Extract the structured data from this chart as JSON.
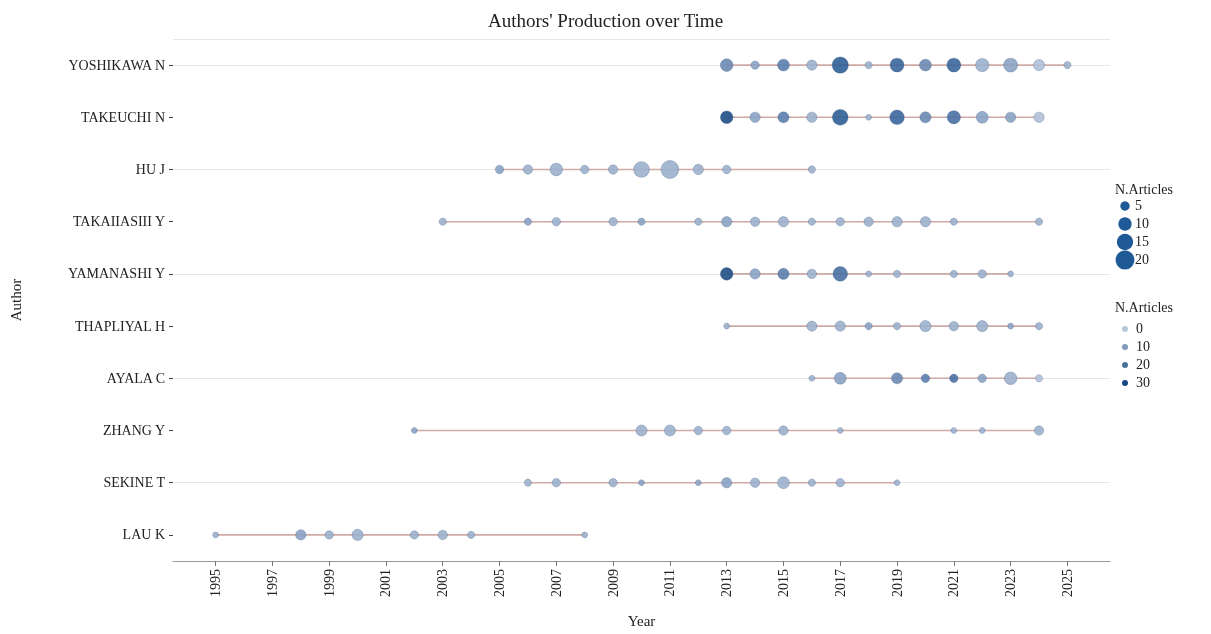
{
  "chart_data": {
    "type": "bubble",
    "orientation": "horizontal",
    "title": "Authors' Production over Time",
    "xlabel": "Year",
    "ylabel": "Author",
    "legend_title": "N.Articles",
    "clabel": "N.Articles",
    "grid": "y",
    "xlim": [
      1993.5,
      2026.5
    ],
    "xticks": [
      1995,
      1997,
      1999,
      2001,
      2003,
      2005,
      2007,
      2009,
      2011,
      2013,
      2015,
      2017,
      2019,
      2021,
      2023,
      2025
    ],
    "categories": [
      "YOSHIKAWA N",
      "TAKEUCHI N",
      "HU J",
      "TAKAIIASIII Y",
      "YAMANASHI Y",
      "THAPLIYAL H",
      "AYALA C",
      "ZHANG Y",
      "SEKINE T",
      "LAU K"
    ],
    "size_legend": [
      5,
      10,
      15,
      20
    ],
    "annotations": [
      "0",
      "10",
      "20",
      "30"
    ],
    "series": [
      {
        "values": [
          2013,
          2013,
          2005,
          2003,
          2013,
          2013,
          2016,
          2002,
          2006,
          1995
        ],
        "sizes": [
          9,
          9,
          4,
          3,
          9,
          2,
          2,
          2,
          3,
          2
        ],
        "colors": [
          "#6b8ab3",
          "#1f4e85",
          "#8aa3c4",
          "#9cb1cd",
          "#1f4e85",
          "#9cb1cd",
          "#9cb1cd",
          "#8aa3c4",
          "#9cb1cd",
          "#9cb1cd"
        ]
      },
      {
        "values": [
          2014,
          2014,
          2006,
          2006,
          2014,
          2016,
          2017,
          2010,
          2007,
          1998
        ],
        "sizes": [
          4,
          6,
          5,
          3,
          6,
          6,
          8,
          7,
          4,
          6
        ],
        "colors": [
          "#8aa3c4",
          "#8aa3c4",
          "#9cb1cd",
          "#8aa3c4",
          "#8aa3c4",
          "#9cb1cd",
          "#8aa3c4",
          "#9cb1cd",
          "#9cb1cd",
          "#8aa3c4"
        ]
      },
      {
        "values": [
          2015,
          2015,
          2007,
          2007,
          2015,
          2017,
          2019,
          2011,
          2009,
          1999
        ],
        "sizes": [
          8,
          7,
          9,
          4,
          7,
          6,
          7,
          7,
          4,
          4
        ],
        "colors": [
          "#5a7fae",
          "#5a7fae",
          "#9cb1cd",
          "#9cb1cd",
          "#5a7fae",
          "#9cb1cd",
          "#6b8ab3",
          "#9cb1cd",
          "#9cb1cd",
          "#9cb1cd"
        ]
      },
      {
        "values": [
          2016,
          2016,
          2008,
          2009,
          2016,
          2018,
          2020,
          2012,
          2010,
          2000
        ],
        "sizes": [
          6,
          6,
          4,
          4,
          5,
          3,
          4,
          4,
          2,
          7
        ],
        "colors": [
          "#9cb1cd",
          "#9cb1cd",
          "#9cb1cd",
          "#9cb1cd",
          "#9cb1cd",
          "#8aa3c4",
          "#5a7fae",
          "#9cb1cd",
          "#8aa3c4",
          "#9cb1cd"
        ]
      },
      {
        "values": [
          2017,
          2017,
          2009,
          2010,
          2017,
          2019,
          2021,
          2013,
          2012,
          2002
        ],
        "sizes": [
          15,
          14,
          5,
          3,
          12,
          3,
          4,
          4,
          2,
          4
        ],
        "colors": [
          "#2f5f97",
          "#2f5f97",
          "#9cb1cd",
          "#8aa3c4",
          "#4a70a3",
          "#9cb1cd",
          "#4a70a3",
          "#9cb1cd",
          "#8aa3c4",
          "#9cb1cd"
        ]
      },
      {
        "values": [
          2018,
          2018,
          2010,
          2012,
          2018,
          2020,
          2022,
          2015,
          2013,
          2003
        ],
        "sizes": [
          3,
          2,
          14,
          3,
          2,
          7,
          4,
          5,
          6,
          5
        ],
        "colors": [
          "#9cb1cd",
          "#9cb1cd",
          "#9cb1cd",
          "#9cb1cd",
          "#9cb1cd",
          "#9cb1cd",
          "#8aa3c4",
          "#9cb1cd",
          "#8aa3c4",
          "#9cb1cd"
        ]
      },
      {
        "values": [
          2019,
          2019,
          2011,
          2013,
          2019,
          2021,
          2023,
          2017,
          2014,
          2004
        ],
        "sizes": [
          11,
          12,
          18,
          6,
          3,
          5,
          9,
          2,
          5,
          3
        ],
        "colors": [
          "#3a669c",
          "#3a669c",
          "#9cb1cd",
          "#8aa3c4",
          "#9cb1cd",
          "#9cb1cd",
          "#9cb1cd",
          "#9cb1cd",
          "#9cb1cd",
          "#9cb1cd"
        ]
      },
      {
        "values": [
          2020,
          2020,
          2012,
          2014,
          2021,
          2022,
          2024,
          2021,
          2015,
          2008
        ],
        "sizes": [
          8,
          7,
          6,
          5,
          3,
          7,
          3,
          2,
          8,
          2
        ],
        "colors": [
          "#6b8ab3",
          "#6b8ab3",
          "#9cb1cd",
          "#9cb1cd",
          "#9cb1cd",
          "#9cb1cd",
          "#b0c1d8",
          "#9cb1cd",
          "#9cb1cd",
          "#9cb1cd"
        ]
      },
      {
        "values": [
          2021,
          2021,
          2013,
          2015,
          2022,
          2023,
          null,
          2022,
          2016,
          null
        ],
        "sizes": [
          11,
          10,
          4,
          6,
          4,
          2,
          null,
          2,
          3,
          null
        ],
        "colors": [
          "#3a669c",
          "#4a70a3",
          "#9cb1cd",
          "#9cb1cd",
          "#9cb1cd",
          "#8aa3c4",
          null,
          "#9cb1cd",
          "#9cb1cd",
          null
        ]
      },
      {
        "values": [
          2022,
          2022,
          2016,
          2016,
          2023,
          2024,
          null,
          2024,
          2017,
          null
        ],
        "sizes": [
          10,
          8,
          3,
          3,
          2,
          3,
          null,
          5,
          4,
          null
        ],
        "colors": [
          "#9cb1cd",
          "#8aa3c4",
          "#9cb1cd",
          "#9cb1cd",
          "#9cb1cd",
          "#9cb1cd",
          null,
          "#9cb1cd",
          "#9cb1cd",
          null
        ]
      },
      {
        "values": [
          2023,
          2023,
          null,
          2017,
          null,
          null,
          null,
          null,
          2019,
          null
        ],
        "sizes": [
          11,
          6,
          null,
          4,
          null,
          null,
          null,
          null,
          2,
          null
        ],
        "colors": [
          "#8aa3c4",
          "#8aa3c4",
          null,
          "#9cb1cd",
          null,
          null,
          null,
          null,
          "#9cb1cd",
          null
        ]
      },
      {
        "values": [
          2024,
          2024,
          null,
          2018,
          null,
          null,
          null,
          null,
          null,
          null
        ],
        "sizes": [
          7,
          6,
          null,
          5,
          null,
          null,
          null,
          null,
          null,
          null
        ],
        "colors": [
          "#b0c1d8",
          "#b0c1d8",
          null,
          "#9cb1cd",
          null,
          null,
          null,
          null,
          null,
          null
        ]
      },
      {
        "values": [
          2025,
          null,
          null,
          2019,
          null,
          null,
          null,
          null,
          null,
          null
        ],
        "sizes": [
          3,
          null,
          null,
          6,
          null,
          null,
          null,
          null,
          null,
          null
        ],
        "colors": [
          "#9cb1cd",
          null,
          null,
          "#9cb1cd",
          null,
          null,
          null,
          null,
          null,
          null
        ]
      },
      {
        "values": [
          null,
          null,
          null,
          2020,
          null,
          null,
          null,
          null,
          null,
          null
        ],
        "sizes": [
          null,
          null,
          null,
          6,
          null,
          null,
          null,
          null,
          null,
          null
        ],
        "colors": [
          null,
          null,
          null,
          "#9cb1cd",
          null,
          null,
          null,
          null,
          null,
          null
        ]
      },
      {
        "values": [
          null,
          null,
          null,
          2021,
          null,
          null,
          null,
          null,
          null,
          null
        ],
        "sizes": [
          null,
          null,
          null,
          3,
          null,
          null,
          null,
          null,
          null,
          null
        ],
        "colors": [
          null,
          null,
          null,
          "#9cb1cd",
          null,
          null,
          null,
          null,
          null,
          null
        ]
      },
      {
        "values": [
          null,
          null,
          null,
          2024,
          null,
          null,
          null,
          null,
          null,
          null
        ],
        "sizes": [
          null,
          null,
          null,
          3,
          null,
          null,
          null,
          null,
          null,
          null
        ],
        "colors": [
          null,
          null,
          null,
          "#9cb1cd",
          null,
          null,
          null,
          null,
          null,
          null
        ]
      }
    ]
  }
}
